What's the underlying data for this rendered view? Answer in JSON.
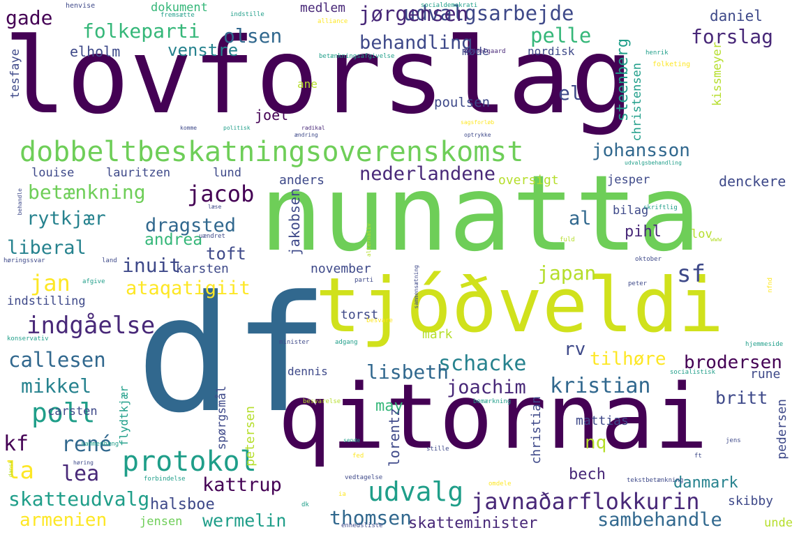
{
  "colors": {
    "background": "#ffffff",
    "palette": [
      "#440154",
      "#482878",
      "#3e4989",
      "#31688e",
      "#26828e",
      "#1f9e89",
      "#35b779",
      "#6ece58",
      "#b5de2b",
      "#fde725"
    ]
  },
  "words": [
    {
      "text": "lovforslag",
      "color": "#440154"
    },
    {
      "text": "nunatta",
      "color": "#6ece58"
    },
    {
      "text": "df",
      "color": "#31688e"
    },
    {
      "text": "qitornai",
      "color": "#440154"
    },
    {
      "text": "tjóðveldi",
      "color": "#d0e11c"
    },
    {
      "text": "dobbeltbeskatningsoverenskomst",
      "color": "#6ece58"
    },
    {
      "text": "udvalgsarbejde",
      "color": "#3e4989"
    },
    {
      "text": "folkeparti",
      "color": "#35b779"
    },
    {
      "text": "jørgensen",
      "color": "#482878"
    },
    {
      "text": "olsen",
      "color": "#31688e"
    },
    {
      "text": "behandling",
      "color": "#3e4989"
    },
    {
      "text": "pelle",
      "color": "#35b779"
    },
    {
      "text": "forslag",
      "color": "#482878"
    },
    {
      "text": "venstre",
      "color": "#26828e"
    },
    {
      "text": "gade",
      "color": "#440154"
    },
    {
      "text": "elholm",
      "color": "#3e4989"
    },
    {
      "text": "daniel",
      "color": "#3e4989"
    },
    {
      "text": "dokument",
      "color": "#35b779"
    },
    {
      "text": "medlem",
      "color": "#482878"
    },
    {
      "text": "johansson",
      "color": "#31688e"
    },
    {
      "text": "nederlandene",
      "color": "#482878"
    },
    {
      "text": "betænkning",
      "color": "#6ece58"
    },
    {
      "text": "jacob",
      "color": "#440154"
    },
    {
      "text": "rytkjær",
      "color": "#26828e"
    },
    {
      "text": "dragsted",
      "color": "#31688e"
    },
    {
      "text": "liberal",
      "color": "#26828e"
    },
    {
      "text": "andrea",
      "color": "#35b779"
    },
    {
      "text": "inuit",
      "color": "#3e4989"
    },
    {
      "text": "toft",
      "color": "#3e4989"
    },
    {
      "text": "jan",
      "color": "#fde725"
    },
    {
      "text": "ataqatigiit",
      "color": "#fde725"
    },
    {
      "text": "indgåelse",
      "color": "#482878"
    },
    {
      "text": "callesen",
      "color": "#31688e"
    },
    {
      "text": "mikkel",
      "color": "#26828e"
    },
    {
      "text": "poll",
      "color": "#1f9e89"
    },
    {
      "text": "kf",
      "color": "#440154"
    },
    {
      "text": "rené",
      "color": "#31688e"
    },
    {
      "text": "la",
      "color": "#fde725"
    },
    {
      "text": "lea",
      "color": "#482878"
    },
    {
      "text": "protokol",
      "color": "#1f9e89"
    },
    {
      "text": "kattrup",
      "color": "#440154"
    },
    {
      "text": "skatteudvalg",
      "color": "#1f9e89"
    },
    {
      "text": "halsboe",
      "color": "#3e4989"
    },
    {
      "text": "armenien",
      "color": "#fde725"
    },
    {
      "text": "wermelin",
      "color": "#1f9e89"
    },
    {
      "text": "jensen",
      "color": "#6ece58"
    },
    {
      "text": "udvalg",
      "color": "#1f9e89"
    },
    {
      "text": "javnaðarflokkurin",
      "color": "#482878"
    },
    {
      "text": "thomsen",
      "color": "#31688e"
    },
    {
      "text": "skatteminister",
      "color": "#482878"
    },
    {
      "text": "sambehandle",
      "color": "#31688e"
    },
    {
      "text": "schacke",
      "color": "#26828e"
    },
    {
      "text": "lisbeth",
      "color": "#31688e"
    },
    {
      "text": "may",
      "color": "#35b779"
    },
    {
      "text": "joachim",
      "color": "#482878"
    },
    {
      "text": "kristian",
      "color": "#31688e"
    },
    {
      "text": "brodersen",
      "color": "#440154"
    },
    {
      "text": "britt",
      "color": "#3e4989"
    },
    {
      "text": "nq",
      "color": "#b5de2b"
    },
    {
      "text": "bech",
      "color": "#482878"
    },
    {
      "text": "danmark",
      "color": "#26828e"
    },
    {
      "text": "skibby",
      "color": "#3e4989"
    },
    {
      "text": "unde",
      "color": "#b5de2b"
    },
    {
      "text": "mattias",
      "color": "#3e4989"
    },
    {
      "text": "rune",
      "color": "#3e4989"
    },
    {
      "text": "tilhøre",
      "color": "#fde725"
    },
    {
      "text": "rv",
      "color": "#3e4989"
    },
    {
      "text": "sf",
      "color": "#3e4989"
    },
    {
      "text": "japan",
      "color": "#b5de2b"
    },
    {
      "text": "al",
      "color": "#31688e"
    },
    {
      "text": "pihl",
      "color": "#482878"
    },
    {
      "text": "el",
      "color": "#3e4989"
    },
    {
      "text": "poulsen",
      "color": "#3e4989"
    },
    {
      "text": "joel",
      "color": "#440154"
    },
    {
      "text": "louise",
      "color": "#3e4989"
    },
    {
      "text": "lauritzen",
      "color": "#3e4989"
    },
    {
      "text": "lund",
      "color": "#3e4989"
    },
    {
      "text": "anders",
      "color": "#3e4989"
    },
    {
      "text": "oversigt",
      "color": "#b5de2b"
    },
    {
      "text": "jesper",
      "color": "#3e4989"
    },
    {
      "text": "denckere",
      "color": "#3e4989"
    },
    {
      "text": "bilag",
      "color": "#3e4989"
    },
    {
      "text": "lov",
      "color": "#b5de2b"
    },
    {
      "text": "karsten",
      "color": "#3e4989"
    },
    {
      "text": "november",
      "color": "#3e4989"
    },
    {
      "text": "torst",
      "color": "#3e4989"
    },
    {
      "text": "mark",
      "color": "#b5de2b"
    },
    {
      "text": "dennis",
      "color": "#3e4989"
    },
    {
      "text": "carsten",
      "color": "#3e4989"
    },
    {
      "text": "indstilling",
      "color": "#3e4989"
    },
    {
      "text": "nordisk",
      "color": "#3e4989"
    },
    {
      "text": "møde",
      "color": "#3e4989"
    },
    {
      "text": "ane",
      "color": "#b5de2b"
    },
    {
      "text": "steenberg",
      "color": "#1f9e89"
    },
    {
      "text": "christensen",
      "color": "#1f9e89"
    },
    {
      "text": "kissmeyer",
      "color": "#b5de2b"
    },
    {
      "text": "tesfaye",
      "color": "#3e4989"
    },
    {
      "text": "jakobsen",
      "color": "#3e4989"
    },
    {
      "text": "lorentz",
      "color": "#3e4989"
    },
    {
      "text": "christian",
      "color": "#3e4989"
    },
    {
      "text": "pedersen",
      "color": "#3e4989"
    },
    {
      "text": "petersen",
      "color": "#b5de2b"
    },
    {
      "text": "flydtkjær",
      "color": "#1f9e89"
    },
    {
      "text": "spørgsmål",
      "color": "#3e4989"
    },
    {
      "text": "henvise",
      "color": "#3e4989"
    },
    {
      "text": "fremsætte",
      "color": "#1f9e89"
    },
    {
      "text": "indstille",
      "color": "#1f9e89"
    },
    {
      "text": "alliance",
      "color": "#fde725"
    },
    {
      "text": "socialdemokrati",
      "color": "#1f9e89"
    },
    {
      "text": "betænkningsafgivelse",
      "color": "#1f9e89"
    },
    {
      "text": "hummelgaard",
      "color": "#482878"
    },
    {
      "text": "henrik",
      "color": "#1f9e89"
    },
    {
      "text": "folketing",
      "color": "#fde725"
    },
    {
      "text": "komme",
      "color": "#3e4989"
    },
    {
      "text": "politisk",
      "color": "#1f9e89"
    },
    {
      "text": "radikal",
      "color": "#482878"
    },
    {
      "text": "ændring",
      "color": "#3e4989"
    },
    {
      "text": "sagsforløb",
      "color": "#fde725"
    },
    {
      "text": "optrykke",
      "color": "#3e4989"
    },
    {
      "text": "udvalgsbehandling",
      "color": "#1f9e89"
    },
    {
      "text": "behandle",
      "color": "#3e4989"
    },
    {
      "text": "læse",
      "color": "#3e4989"
    },
    {
      "text": "alternativ",
      "color": "#b5de2b"
    },
    {
      "text": "skriftlig",
      "color": "#1f9e89"
    },
    {
      "text": "uændret",
      "color": "#3e4989"
    },
    {
      "text": "fuld",
      "color": "#b5de2b"
    },
    {
      "text": "www",
      "color": "#b5de2b"
    },
    {
      "text": "høringssvar",
      "color": "#3e4989"
    },
    {
      "text": "land",
      "color": "#3e4989"
    },
    {
      "text": "oktober",
      "color": "#3e4989"
    },
    {
      "text": "afgive",
      "color": "#1f9e89"
    },
    {
      "text": "parti",
      "color": "#3e4989"
    },
    {
      "text": "sammensætning",
      "color": "#3e4989"
    },
    {
      "text": "peter",
      "color": "#3e4989"
    },
    {
      "text": "nfnd",
      "color": "#fde725"
    },
    {
      "text": "konservativ",
      "color": "#1f9e89"
    },
    {
      "text": "minister",
      "color": "#3e4989"
    },
    {
      "text": "adgang",
      "color": "#1f9e89"
    },
    {
      "text": "besvare",
      "color": "#fde725"
    },
    {
      "text": "hjemmeside",
      "color": "#1f9e89"
    },
    {
      "text": "socialistisk",
      "color": "#1f9e89"
    },
    {
      "text": "bemærkning",
      "color": "#1f9e89"
    },
    {
      "text": "besvarelse",
      "color": "#b5de2b"
    },
    {
      "text": "sende",
      "color": "#1f9e89"
    },
    {
      "text": "stille",
      "color": "#3e4989"
    },
    {
      "text": "jens",
      "color": "#3e4989"
    },
    {
      "text": "sammenhæng",
      "color": "#1f9e89"
    },
    {
      "text": "høring",
      "color": "#3e4989"
    },
    {
      "text": "fed",
      "color": "#fde725"
    },
    {
      "text": "ft",
      "color": "#3e4989"
    },
    {
      "text": "dansk",
      "color": "#b5de2b"
    },
    {
      "text": "forbindelse",
      "color": "#1f9e89"
    },
    {
      "text": "vedtagelse",
      "color": "#3e4989"
    },
    {
      "text": "omdele",
      "color": "#fde725"
    },
    {
      "text": "tekstbetænkning",
      "color": "#3e4989"
    },
    {
      "text": "ia",
      "color": "#fde725"
    },
    {
      "text": "dk",
      "color": "#1f9e89"
    },
    {
      "text": "enhedsliste",
      "color": "#3e4989"
    }
  ]
}
